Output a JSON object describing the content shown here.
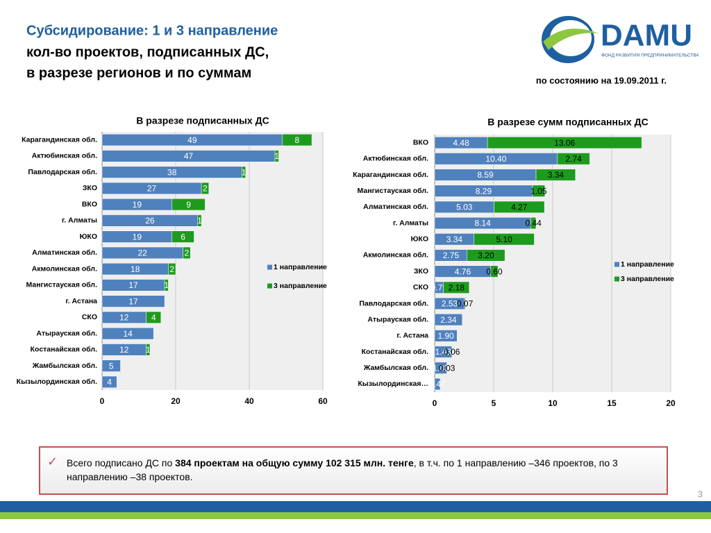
{
  "header": {
    "title_lines": [
      "Субсидирование: 1 и 3 направление",
      "кол-во проектов, подписанных ДС,",
      "в разрезе регионов и по суммам"
    ],
    "date": "по состоянию на 19.09.2011 г."
  },
  "logo": {
    "name": "DAMU",
    "tagline": "ФОНД РАЗВИТИЯ ПРЕДПРИНИМАТЕЛЬСТВА"
  },
  "chart_data": [
    {
      "type": "hbar_stacked",
      "title": "В разрезе подписанных ДС",
      "categories": [
        "Карагандинская обл.",
        "Актюбинская обл.",
        "Павлодарская обл.",
        "ЗКО",
        "ВКО",
        "г. Алматы",
        "ЮКО",
        "Алматинская обл.",
        "Акмолинская обл.",
        "Мангистауская обл.",
        "г. Астана",
        "СКО",
        "Атырауская обл.",
        "Костанайская обл.",
        "Жамбылская обл.",
        "Кызылординская обл."
      ],
      "series": [
        {
          "name": "1 направление",
          "color": "#4f81bd",
          "values": [
            49,
            47,
            38,
            27,
            19,
            26,
            19,
            22,
            18,
            17,
            17,
            12,
            14,
            12,
            5,
            4
          ]
        },
        {
          "name": "3 направление",
          "color": "#1e9b1e",
          "values": [
            8,
            1,
            1,
            2,
            9,
            1,
            6,
            2,
            2,
            1,
            null,
            4,
            null,
            1,
            null,
            null
          ]
        }
      ],
      "xlim": [
        0,
        60
      ],
      "xticks": [
        0,
        20,
        40,
        60
      ],
      "grid": true
    },
    {
      "type": "hbar_stacked",
      "title": "В разрезе  сумм подписанных ДС",
      "categories": [
        "ВКО",
        "Актюбинская обл.",
        "Карагандинская обл.",
        "Мангистауская обл.",
        "Алматинская обл.",
        "г. Алматы",
        "ЮКО",
        "Акмолинская обл.",
        "ЗКО",
        "СКО",
        "Павлодарская обл.",
        "Атырауская обл.",
        "г. Астана",
        "Костанайская обл.",
        "Жамбылская обл.",
        "Кызылординская…"
      ],
      "series": [
        {
          "name": "1 направление",
          "color": "#4f81bd",
          "values": [
            4.48,
            10.4,
            8.59,
            8.29,
            5.03,
            8.14,
            3.34,
            2.75,
            4.76,
            0.75,
            2.53,
            2.34,
            1.9,
            1.43,
            1.03,
            0.47
          ],
          "value_labels": [
            "4.48",
            "10.40",
            "8.59",
            "8.29",
            "5.03",
            "8.14",
            "3.34",
            "2.75",
            "4.76",
            "0.75",
            "2.53",
            "2.34",
            "1.90",
            "1.43",
            "1.03",
            "0.47"
          ]
        },
        {
          "name": "3 направление",
          "color": "#1e9b1e",
          "values": [
            13.06,
            2.74,
            3.34,
            1.05,
            4.27,
            0.44,
            5.1,
            3.2,
            0.6,
            2.18,
            0.07,
            null,
            null,
            0.06,
            0.03,
            null
          ],
          "value_labels": [
            "13.06",
            "2.74",
            "3.34",
            "1.05",
            "4.27",
            "0.44",
            "5.10",
            "3.20",
            "0.60",
            "2.18",
            "0.07",
            null,
            null,
            "0.06",
            "0.03",
            null
          ]
        }
      ],
      "xlim": [
        0,
        20
      ],
      "xticks": [
        0,
        5,
        10,
        15,
        20
      ],
      "grid": true
    }
  ],
  "summary": {
    "parts": [
      "Всего подписано ДС по ",
      "384 проектам  на общую сумму 102 315 млн. тенге",
      ", в т.ч. по 1 направлению –346 проектов, по 3 направлению –38 проектов."
    ]
  },
  "page_number": "3"
}
